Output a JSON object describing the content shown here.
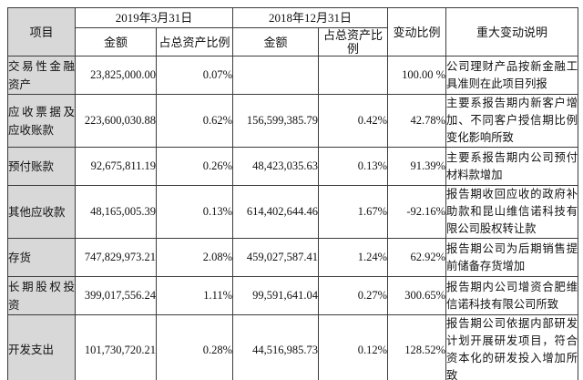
{
  "table": {
    "headers": {
      "item": "项目",
      "period_2019": "2019年3月31日",
      "period_2018": "2018年12月31日",
      "amount": "金额",
      "pct_of_assets": "占总资产比例",
      "change_ratio": "变动比例",
      "note": "重大变动说明"
    },
    "rows": [
      {
        "item": "交易性金融资产",
        "amount_2019": "23,825,000.00",
        "pct_2019": "0.07%",
        "amount_2018": "",
        "pct_2018": "",
        "change": "100.00 %",
        "note": "公司理财产品按新金融工具准则在此项目列报"
      },
      {
        "item": "应收票据及应收账款",
        "amount_2019": "223,600,030.88",
        "pct_2019": "0.62%",
        "amount_2018": "156,599,385.79",
        "pct_2018": "0.42%",
        "change": "42.78%",
        "note": "主要系报告期内新客户增加、不同客户授信期比例变化影响所致"
      },
      {
        "item": "预付账款",
        "amount_2019": "92,675,811.19",
        "pct_2019": "0.26%",
        "amount_2018": "48,423,035.63",
        "pct_2018": "0.13%",
        "change": "91.39%",
        "note": "主要系报告期内公司预付材料款增加"
      },
      {
        "item": "其他应收款",
        "amount_2019": "48,165,005.39",
        "pct_2019": "0.13%",
        "amount_2018": "614,402,644.46",
        "pct_2018": "1.67%",
        "change": "-92.16%",
        "note": "报告期收回应收的政府补助款和昆山维信诺科技有限公司股权转让款"
      },
      {
        "item": "存货",
        "amount_2019": "747,829,973.21",
        "pct_2019": "2.08%",
        "amount_2018": "459,027,587.41",
        "pct_2018": "1.24%",
        "change": "62.92%",
        "note": "报告期公司为后期销售提前储备存货增加"
      },
      {
        "item": "长期股权投资",
        "amount_2019": "399,017,556.24",
        "pct_2019": "1.11%",
        "amount_2018": "99,591,641.04",
        "pct_2018": "0.27%",
        "change": "300.65%",
        "note": "报告期内公司增资合肥维信诺科技有限公司所致"
      },
      {
        "item": "开发支出",
        "amount_2019": "101,730,720.21",
        "pct_2019": "0.28%",
        "amount_2018": "44,516,985.73",
        "pct_2018": "0.12%",
        "change": "128.52%",
        "note": "报告期公司依据内部研发计划开展研发项目，符合资本化的研发投入增加所致"
      }
    ]
  }
}
